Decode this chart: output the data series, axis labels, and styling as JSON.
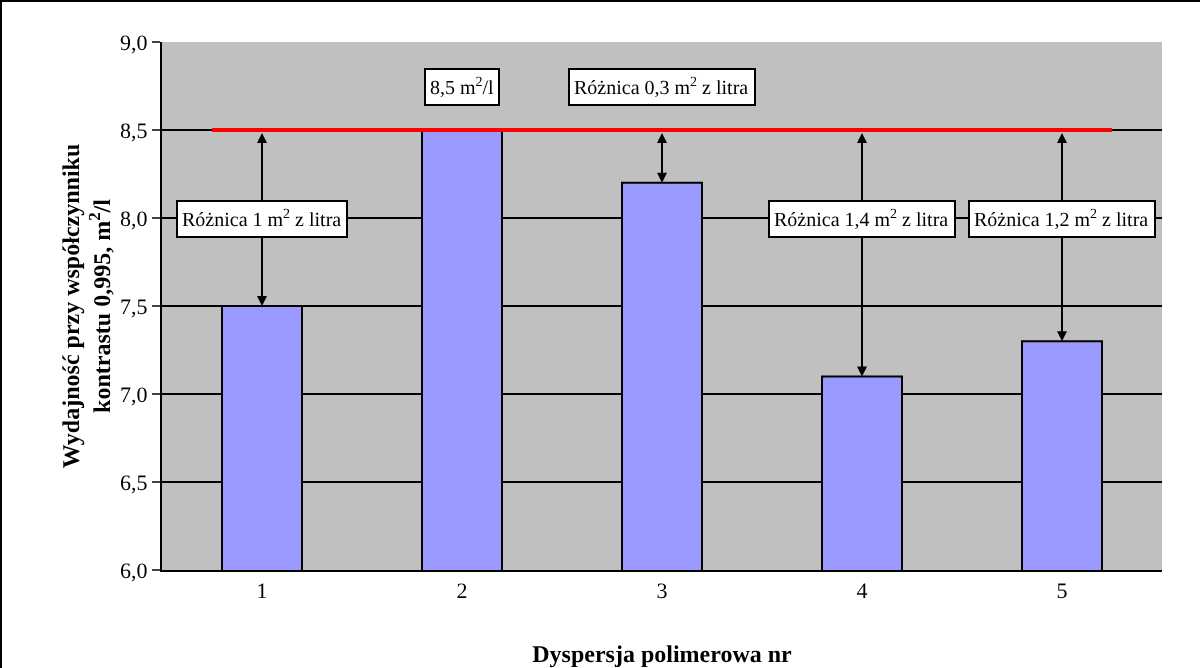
{
  "chart_data": {
    "type": "bar",
    "xlabel": "Dyspersja polimerowa nr",
    "ylabel": "Wydajność przy współczynniku kontrastu 0,995, m$^{2}$/l",
    "categories": [
      "1",
      "2",
      "3",
      "4",
      "5"
    ],
    "values": [
      7.5,
      8.5,
      8.2,
      7.1,
      7.3
    ],
    "color": "#9999ff",
    "ylim": [
      6,
      9
    ],
    "yticks": [
      {
        "value": 6,
        "label": "6,0"
      },
      {
        "value": 6.5,
        "label": "6,5"
      },
      {
        "value": 7,
        "label": "7,0"
      },
      {
        "value": 7.5,
        "label": "7,5"
      },
      {
        "value": 8,
        "label": "8,0"
      },
      {
        "value": 8.5,
        "label": "8,5"
      },
      {
        "value": 9,
        "label": "9,0"
      }
    ],
    "grid": "y",
    "ref_lines": [
      {
        "axis": "y",
        "value": 8.5,
        "color": "#ff0000"
      }
    ],
    "annotations": [
      "Różnica 1 m$^{2}$ z litra",
      "8,5 m$^{2}$/l",
      "Różnica 0,3 m$^{2}$ z litra",
      "Różnica 1,4 m$^{2}$ z litra",
      "Różnica 1,2 m$^{2}$ z litra"
    ]
  }
}
